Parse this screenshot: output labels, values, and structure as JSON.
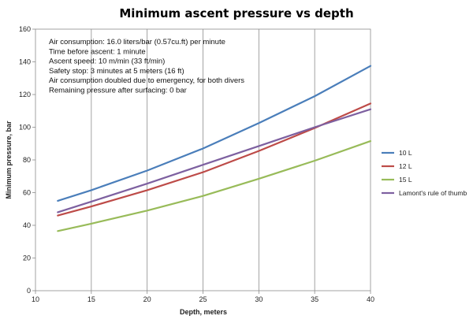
{
  "chart_data": {
    "type": "line",
    "title": "Minimum ascent pressure vs depth",
    "xlabel": "Depth, meters",
    "ylabel": "Minimum pressure,  bar",
    "xlim": [
      10,
      40
    ],
    "ylim": [
      0,
      160
    ],
    "xticks": [
      10,
      15,
      20,
      25,
      30,
      35,
      40
    ],
    "yticks": [
      0,
      20,
      40,
      60,
      80,
      100,
      120,
      140,
      160
    ],
    "grid": "vertical",
    "legend_position": "right",
    "annotations": [
      "Air consumption: 16.0 liters/bar (0.57cu.ft) per minute",
      "Time before ascent: 1 minute",
      "Ascent speed: 10 m/min (33 ft/min)",
      "Safety stop: 3 minutes at 5 meters (16 ft)",
      "Air consumption doubled due to emergency, for both divers",
      "Remaining pressure after surfacing: 0 bar"
    ],
    "x": [
      12,
      15,
      20,
      25,
      30,
      35,
      40
    ],
    "series": [
      {
        "name": "10 L",
        "color": "#4a7eba",
        "values": [
          55,
          61.5,
          73.5,
          87,
          102.5,
          119,
          137.5
        ]
      },
      {
        "name": "12 L",
        "color": "#bd4b48",
        "values": [
          46,
          51.5,
          61.5,
          72.5,
          85.5,
          99.5,
          114.5
        ]
      },
      {
        "name": "15 L",
        "color": "#98bb59",
        "values": [
          36.5,
          41,
          49,
          58,
          68.5,
          79.5,
          91.5
        ]
      },
      {
        "name": "Lamont's rule of thumb",
        "color": "#7d60a0",
        "values": [
          48,
          54.5,
          65.5,
          77,
          88.5,
          100,
          111
        ]
      }
    ]
  }
}
